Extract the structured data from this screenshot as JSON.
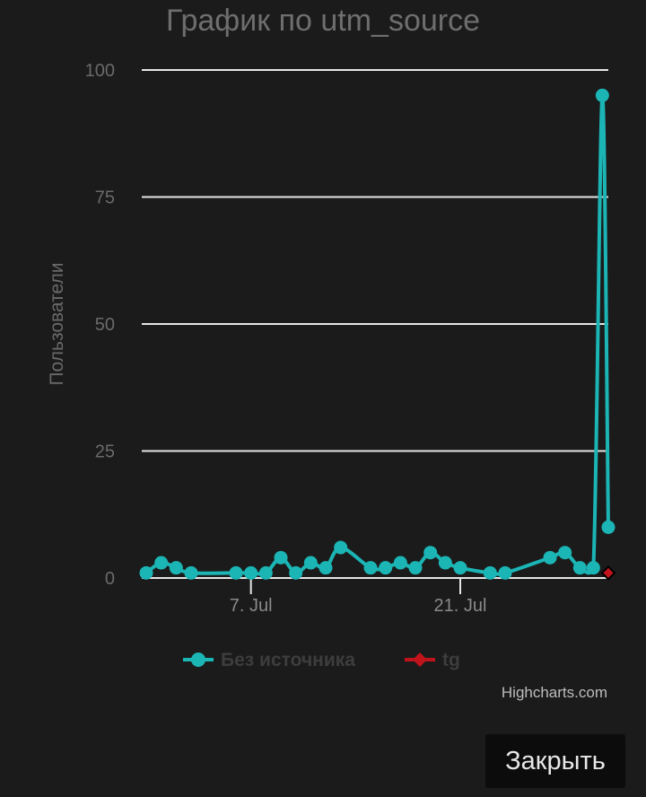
{
  "chart_data": {
    "type": "line",
    "title": "График по utm_source",
    "ylabel": "Пользователи",
    "xlabel": "",
    "ylim": [
      0,
      100
    ],
    "y_ticks": [
      0,
      25,
      50,
      75,
      100
    ],
    "x_ticks": [
      {
        "day": 7,
        "label": "7. Jul"
      },
      {
        "day": 21,
        "label": "21. Jul"
      }
    ],
    "xlim": [
      -0.3,
      30.9
    ],
    "grid": true,
    "legend_position": "bottom-center",
    "series": [
      {
        "name": "Без источника",
        "color": "#1cb5b5",
        "x": [
          0,
          1,
          2,
          3,
          6,
          7,
          8,
          9,
          10,
          11,
          12,
          13,
          15,
          16,
          17,
          18,
          19,
          20,
          21,
          23,
          24,
          27,
          28,
          29,
          30,
          31
        ],
        "y": [
          1,
          3,
          2,
          1,
          1,
          1,
          1,
          4,
          1,
          3,
          2,
          6,
          2,
          2,
          3,
          2,
          5,
          3,
          2,
          1,
          1,
          4,
          5,
          2,
          2,
          95
        ],
        "note_last_point": 10
      },
      {
        "name": "tg",
        "color": "#c0131b",
        "x": [
          31
        ],
        "y": [
          1
        ]
      }
    ]
  },
  "credits": "Highcharts.com",
  "close_button_label": "Закрыть"
}
